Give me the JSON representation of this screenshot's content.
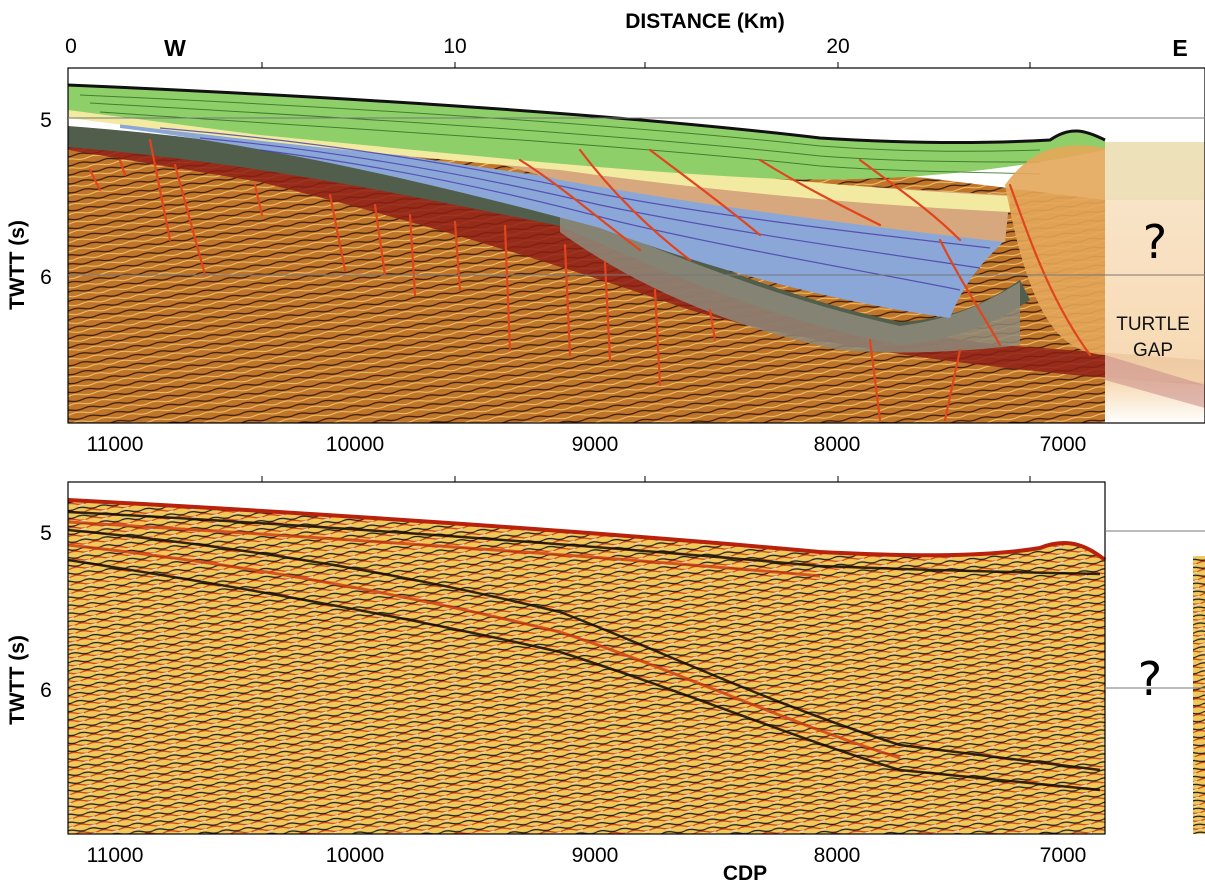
{
  "top_axis": {
    "title": "DISTANCE (Km)",
    "ticks": [
      "0",
      "10",
      "20"
    ],
    "west": "W",
    "east": "E"
  },
  "y_axis": {
    "label": "TWTT (s)",
    "ticks": [
      "5",
      "6"
    ]
  },
  "cdp_axis": {
    "title": "CDP",
    "ticks": [
      "11000",
      "10000",
      "9000",
      "8000",
      "7000"
    ]
  },
  "annotations": {
    "question_mark": "?",
    "turtle_gap_line1": "TURTLE",
    "turtle_gap_line2": "GAP"
  },
  "colors": {
    "water_column": "#c8e6a4",
    "sediment_green": "#8fcf6a",
    "pale_yellow_band": "#f3eaa2",
    "blue_unit": "#8aa7d8",
    "tan_unit": "#d7a77e",
    "dark_band": "#515e4c",
    "red_band": "#8e1f16",
    "basement_orange": "#c0762a",
    "gap_zone": "#f6d7ae",
    "fault": "#e0451c",
    "seismic_red": "#c72b10",
    "seismic_yellow": "#f2d24a"
  }
}
